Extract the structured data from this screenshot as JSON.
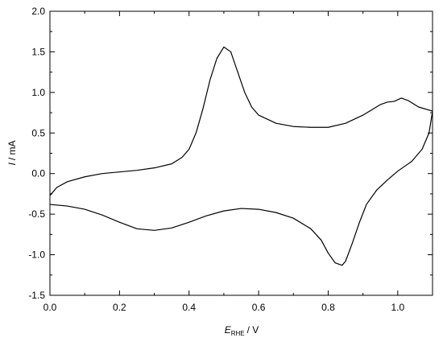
{
  "chart_data": {
    "type": "line",
    "xlabel_symbol": "E",
    "xlabel_subscript": "RHE",
    "xlabel_unit": "/ V",
    "ylabel_symbol": "I",
    "ylabel_unit": "/ mA",
    "xlim": [
      0,
      1.1
    ],
    "ylim": [
      -1.5,
      2.0
    ],
    "xticks": [
      {
        "value": 0,
        "label": "0.0"
      },
      0.2,
      0.4,
      0.6,
      0.8,
      {
        "value": 1,
        "label": "1.0"
      }
    ],
    "yticks": [
      -1.5,
      {
        "value": -1,
        "label": "-1.0"
      },
      -0.5,
      {
        "value": 0,
        "label": "0.0"
      },
      0.5,
      {
        "value": 1,
        "label": "1.0"
      },
      1.5,
      {
        "value": 2,
        "label": "2.0"
      }
    ],
    "xminorticks": [
      0.1,
      0.3,
      0.5,
      0.7,
      0.9
    ],
    "yminorticks": [
      -1.25,
      -0.75,
      -0.25,
      0.25,
      0.75,
      1.25,
      1.75
    ],
    "series": [
      {
        "color": "#000000",
        "x": [
          0.0,
          0.02,
          0.05,
          0.1,
          0.15,
          0.2,
          0.25,
          0.3,
          0.35,
          0.38,
          0.4,
          0.42,
          0.44,
          0.46,
          0.48,
          0.5,
          0.52,
          0.54,
          0.56,
          0.58,
          0.6,
          0.65,
          0.7,
          0.75,
          0.8,
          0.85,
          0.9,
          0.95,
          0.97,
          0.99,
          1.01,
          1.03,
          1.06,
          1.1,
          1.09,
          1.07,
          1.04,
          1.0,
          0.97,
          0.94,
          0.91,
          0.89,
          0.87,
          0.85,
          0.84,
          0.82,
          0.8,
          0.78,
          0.75,
          0.7,
          0.65,
          0.6,
          0.55,
          0.5,
          0.45,
          0.4,
          0.35,
          0.3,
          0.25,
          0.2,
          0.15,
          0.1,
          0.05,
          0.0
        ],
        "values": [
          -0.27,
          -0.17,
          -0.1,
          -0.04,
          0.0,
          0.02,
          0.04,
          0.07,
          0.12,
          0.2,
          0.3,
          0.5,
          0.8,
          1.15,
          1.42,
          1.56,
          1.5,
          1.25,
          1.0,
          0.82,
          0.72,
          0.62,
          0.58,
          0.57,
          0.57,
          0.62,
          0.72,
          0.85,
          0.88,
          0.89,
          0.93,
          0.9,
          0.82,
          0.77,
          0.5,
          0.3,
          0.15,
          0.03,
          -0.08,
          -0.2,
          -0.38,
          -0.6,
          -0.85,
          -1.08,
          -1.13,
          -1.1,
          -0.98,
          -0.82,
          -0.68,
          -0.55,
          -0.48,
          -0.44,
          -0.43,
          -0.46,
          -0.52,
          -0.6,
          -0.67,
          -0.7,
          -0.68,
          -0.6,
          -0.51,
          -0.44,
          -0.4,
          -0.38
        ]
      }
    ]
  }
}
